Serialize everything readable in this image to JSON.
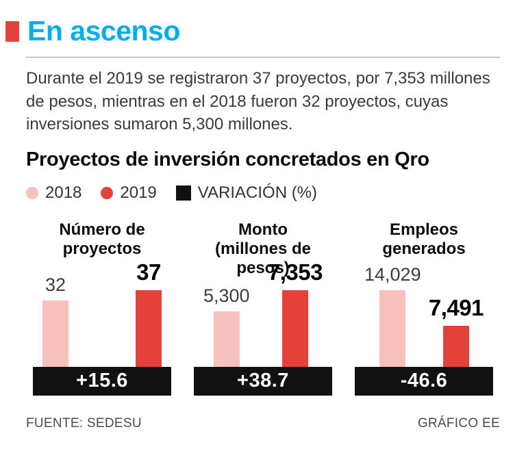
{
  "header": {
    "title": "En ascenso"
  },
  "colors": {
    "accent": "#00AEEF",
    "red": "#E5413B",
    "pink": "#F7C1BE",
    "ink": "#111111"
  },
  "intro": "Durante el 2019 se registraron 37 proyectos, por 7,353 millones de pesos, mientras en el 2018 fueron 32 proyectos, cuyas inversiones sumaron 5,300 millones.",
  "chart_data": {
    "type": "bar",
    "title": "Proyectos de inversión concretados en Qro",
    "legend": [
      {
        "label": "2018",
        "color": "#F7C1BE",
        "shape": "circle"
      },
      {
        "label": "2019",
        "color": "#E5413B",
        "shape": "circle"
      },
      {
        "label": "VARIACIÓN (%)",
        "color": "#111111",
        "shape": "square"
      }
    ],
    "series_names": [
      "2018",
      "2019"
    ],
    "groups": [
      {
        "title_line1": "Número de",
        "title_line2": "proyectos",
        "value_2018": 32,
        "value_2019": 37,
        "label_2018": "32",
        "label_2019": "37",
        "variation": "+15.6"
      },
      {
        "title_line1": "Monto",
        "title_line2": "(millones de pesos)",
        "value_2018": 5300,
        "value_2019": 7353,
        "label_2018": "5,300",
        "label_2019": "7,353",
        "variation": "+38.7"
      },
      {
        "title_line1": "Empleos",
        "title_line2": "generados",
        "value_2018": 14029,
        "value_2019": 7491,
        "label_2018": "14,029",
        "label_2019": "7,491",
        "variation": "-46.6"
      }
    ]
  },
  "footer": {
    "source": "FUENTE: SEDESU",
    "credit": "GRÁFICO EE"
  }
}
